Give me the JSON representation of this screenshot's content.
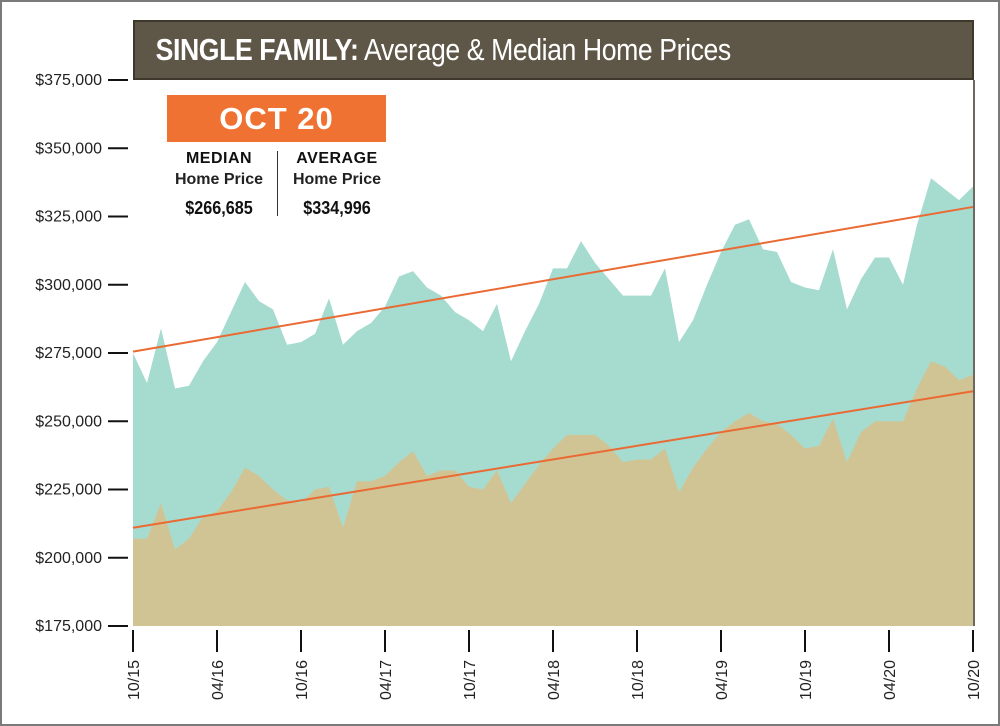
{
  "title": {
    "bold": "SINGLE FAMILY:",
    "rest": " Average & Median Home Prices"
  },
  "highlight": {
    "period": "OCT 20",
    "median_label": "MEDIAN",
    "median_sub": "Home Price",
    "median_value": "$266,685",
    "average_label": "AVERAGE",
    "average_sub": "Home Price",
    "average_value": "$334,996"
  },
  "colors": {
    "average_fill": "#a6dbd0",
    "median_fill": "#d1c494",
    "trend_line": "#ea6a33",
    "title_bar": "#5e5646",
    "badge": "#ef7232"
  },
  "chart_data": {
    "type": "area",
    "title": "SINGLE FAMILY: Average & Median Home Prices",
    "xlabel": "",
    "ylabel": "",
    "ylim": [
      175000,
      375000
    ],
    "yticks": [
      175000,
      200000,
      225000,
      250000,
      275000,
      300000,
      325000,
      350000,
      375000
    ],
    "ytick_labels": [
      "$175,000",
      "$200,000",
      "$225,000",
      "$250,000",
      "$275,000",
      "$300,000",
      "$325,000",
      "$350,000",
      "$375,000"
    ],
    "x_labels": [
      "10/15",
      "04/16",
      "10/16",
      "04/17",
      "10/17",
      "04/18",
      "10/18",
      "04/19",
      "10/19",
      "04/20",
      "10/20"
    ],
    "x_label_months": [
      0,
      6,
      12,
      18,
      24,
      30,
      36,
      42,
      48,
      54,
      60
    ],
    "x_months": [
      0,
      1,
      2,
      3,
      4,
      5,
      6,
      7,
      8,
      9,
      10,
      11,
      12,
      13,
      14,
      15,
      16,
      17,
      18,
      19,
      20,
      21,
      22,
      23,
      24,
      25,
      26,
      27,
      28,
      29,
      30,
      31,
      32,
      33,
      34,
      35,
      36,
      37,
      38,
      39,
      40,
      41,
      42,
      43,
      44,
      45,
      46,
      47,
      48,
      49,
      50,
      51,
      52,
      53,
      54,
      55,
      56,
      57,
      58,
      59,
      60
    ],
    "series": [
      {
        "name": "AVERAGE",
        "values": [
          275000,
          264000,
          284000,
          262000,
          263000,
          272000,
          279000,
          290000,
          301000,
          294000,
          291000,
          278000,
          279000,
          282000,
          295000,
          278000,
          283000,
          286000,
          292000,
          303000,
          305000,
          299000,
          296000,
          290000,
          287000,
          283000,
          293000,
          272000,
          283000,
          293000,
          306000,
          306000,
          316000,
          308000,
          302000,
          296000,
          296000,
          296000,
          306000,
          279000,
          287000,
          300000,
          312000,
          322000,
          324000,
          313000,
          312000,
          301000,
          299000,
          298000,
          313000,
          291000,
          302000,
          310000,
          310000,
          300000,
          322000,
          339000,
          335000,
          331000,
          336000
        ]
      },
      {
        "name": "MEDIAN",
        "values": [
          207000,
          207000,
          220000,
          203000,
          207000,
          215000,
          217000,
          224000,
          233000,
          230000,
          225000,
          221000,
          220000,
          225000,
          226000,
          211000,
          228000,
          228000,
          230000,
          235000,
          239000,
          230000,
          232000,
          232000,
          226000,
          225000,
          232000,
          220000,
          227000,
          234000,
          240000,
          245000,
          245000,
          245000,
          241000,
          235000,
          236000,
          236000,
          240000,
          224000,
          233000,
          240000,
          246000,
          250000,
          253000,
          250000,
          249000,
          245000,
          240000,
          241000,
          251000,
          235000,
          246000,
          250000,
          250000,
          250000,
          262000,
          272000,
          270000,
          265000,
          267000
        ]
      }
    ],
    "trendlines": [
      {
        "series": "AVERAGE",
        "start": 275500,
        "end": 328500
      },
      {
        "series": "MEDIAN",
        "start": 211000,
        "end": 261000
      }
    ]
  }
}
